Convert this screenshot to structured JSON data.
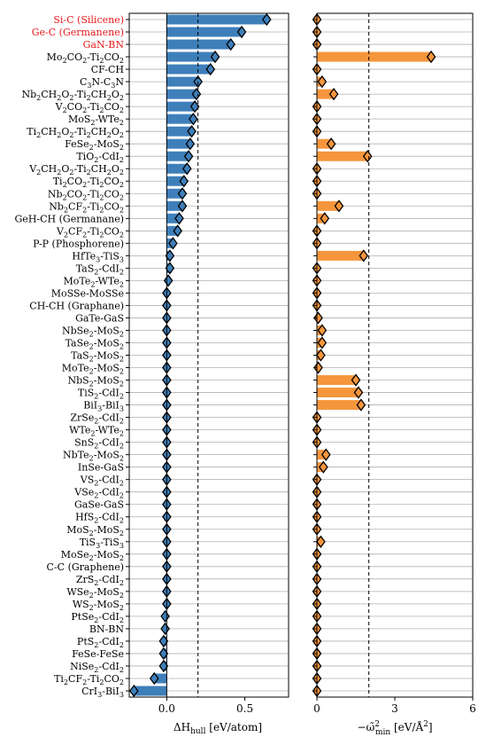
{
  "chart_data": [
    {
      "type": "bar",
      "orientation": "horizontal",
      "xlabel": "ΔH_hull [eV/atom]",
      "xlim": [
        -0.24,
        0.78
      ],
      "xticks": [
        "0.0",
        "0.5"
      ],
      "xtick_values": [
        0.0,
        0.5
      ],
      "reference_line": 0.2,
      "bar_color": "#3e7fba",
      "marker_color": "#3e7fba",
      "highlight_color": "#e8191b",
      "categories": [
        "Si-C (Silicene)",
        "Ge-C (Germanene)",
        "GaN-BN",
        "Mo2CO2-Ti2CO2",
        "CF-CH",
        "C3N-C3N",
        "Nb2CH2O2-Ti2CH2O2",
        "V2CO2-Ti2CO2",
        "MoS2-WTe2",
        "Ti2CH2O2-Ti2CH2O2",
        "FeSe2-MoS2",
        "TiO2-CdI2",
        "V2CH2O2-Ti2CH2O2",
        "Ti2CO2-Ti2CO2",
        "Nb2CO2-Ti2CO2",
        "Nb2CF2-Ti2CO2",
        "GeH-CH (Germanane)",
        "V2CF2-Ti2CO2",
        "P-P (Phosphorene)",
        "HfTe3-TiS3",
        "TaS2-CdI2",
        "MoTe2-WTe2",
        "MoSSe-MoSSe",
        "CH-CH (Graphane)",
        "GaTe-GaS",
        "NbSe2-MoS2",
        "TaSe2-MoS2",
        "TaS2-MoS2",
        "MoTe2-MoS2",
        "NbS2-MoS2",
        "TiS2-CdI2",
        "BiI3-BiI3",
        "ZrSe2-CdI2",
        "WTe2-WTe2",
        "SnS2-CdI2",
        "NbTe2-MoS2",
        "InSe-GaS",
        "VS2-CdI2",
        "VSe2-CdI2",
        "GaSe-GaS",
        "HfS2-CdI2",
        "MoS2-MoS2",
        "TiS3-TiS3",
        "MoSe2-MoS2",
        "C-C (Graphene)",
        "ZrS2-CdI2",
        "WSe2-MoS2",
        "WS2-MoS2",
        "PtSe2-CdI2",
        "BN-BN",
        "PtS2-CdI2",
        "FeSe-FeSe",
        "NiSe2-CdI2",
        "Ti2CF2-Ti2CO2",
        "CrI3-BiI3"
      ],
      "highlighted": [
        "Si-C (Silicene)",
        "Ge-C (Germanene)",
        "GaN-BN"
      ],
      "values": [
        0.64,
        0.48,
        0.41,
        0.31,
        0.28,
        0.2,
        0.19,
        0.18,
        0.17,
        0.16,
        0.15,
        0.14,
        0.13,
        0.11,
        0.1,
        0.1,
        0.08,
        0.07,
        0.04,
        0.02,
        0.02,
        0.01,
        0.0,
        0.0,
        0.0,
        0.0,
        0.0,
        0.0,
        0.0,
        0.0,
        0.0,
        0.0,
        0.0,
        0.0,
        0.0,
        0.0,
        0.0,
        0.0,
        0.0,
        0.0,
        0.0,
        0.0,
        0.0,
        0.0,
        0.0,
        0.0,
        0.0,
        0.0,
        -0.01,
        -0.01,
        -0.02,
        -0.02,
        -0.02,
        -0.08,
        -0.21
      ]
    },
    {
      "type": "bar",
      "orientation": "horizontal",
      "xlabel": "-ω̃²_min [eV/Å²]",
      "xlim": [
        0,
        6
      ],
      "xticks": [
        "0",
        "3",
        "6"
      ],
      "xtick_values": [
        0,
        3,
        6
      ],
      "reference_line": 2,
      "bar_color": "#f5963c",
      "marker_color": "#f5963c",
      "values": [
        0.0,
        0.0,
        0.0,
        4.4,
        0.0,
        0.2,
        0.65,
        0.0,
        0.0,
        0.0,
        0.55,
        1.95,
        0.0,
        0.0,
        0.0,
        0.85,
        0.3,
        0.0,
        0.0,
        1.8,
        0.0,
        0.0,
        0.0,
        0.0,
        0.05,
        0.2,
        0.2,
        0.15,
        0.05,
        1.5,
        1.6,
        1.7,
        0.0,
        0.0,
        0.0,
        0.35,
        0.25,
        0.0,
        0.0,
        0.0,
        0.0,
        0.0,
        0.15,
        0.0,
        0.0,
        0.0,
        0.0,
        0.0,
        0.0,
        0.0,
        0.0,
        0.0,
        0.0,
        0.0,
        0.0
      ]
    }
  ]
}
